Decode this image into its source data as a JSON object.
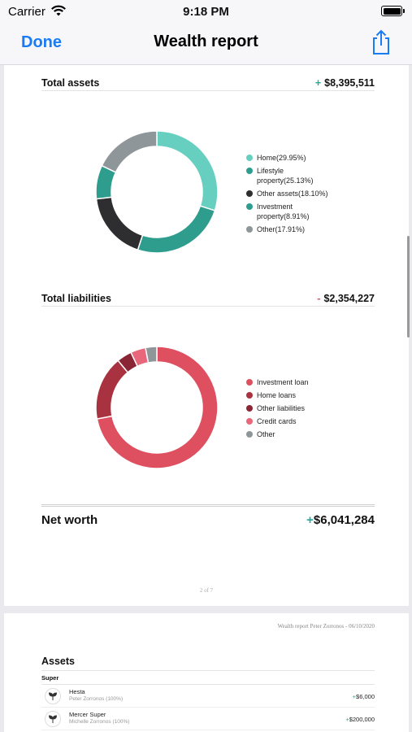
{
  "status_bar": {
    "carrier": "Carrier",
    "time": "9:18 PM"
  },
  "nav": {
    "done_label": "Done",
    "title": "Wealth report",
    "share_icon": "share-icon"
  },
  "colors": {
    "accent": "#1a7cf5",
    "positive": "#2ba79a",
    "negative": "#e14f5f"
  },
  "page1": {
    "total_assets": {
      "label": "Total assets",
      "sign": "+",
      "value": "$8,395,511"
    },
    "total_liabilities": {
      "label": "Total liabilities",
      "sign": "-",
      "value": "$2,354,227"
    },
    "net_worth": {
      "label": "Net worth",
      "sign": "+",
      "value": "$6,041,284"
    },
    "page_number": "2 of 7"
  },
  "page2": {
    "header": "Wealth report Peter Zorronos - 06/10/2020",
    "assets_title": "Assets",
    "group_label": "Super",
    "rows": [
      {
        "name": "Hesta",
        "owner": "Peter Zorronos (100%)",
        "sign": "+",
        "amount": "$6,000"
      },
      {
        "name": "Mercer Super",
        "owner": "Michelle Zorronos (100%)",
        "sign": "+",
        "amount": "$200,000"
      }
    ]
  },
  "chart_data": [
    {
      "type": "pie",
      "title": "Total assets",
      "donut": true,
      "legend_position": "right",
      "categories": [
        "Home(29.95%)",
        "Lifestyle property(25.13%)",
        "Other assets(18.10%)",
        "Investment property(8.91%)",
        "Other(17.91%)"
      ],
      "values": [
        29.95,
        25.13,
        18.1,
        8.91,
        17.91
      ],
      "colors": [
        "#66cfc0",
        "#2e9d8e",
        "#2e2e30",
        "#2e9d8e",
        "#8f969a"
      ]
    },
    {
      "type": "pie",
      "title": "Total liabilities",
      "donut": true,
      "legend_position": "right",
      "categories": [
        "Investment loan",
        "Home loans",
        "Other liabilities",
        "Credit cards",
        "Other"
      ],
      "values": [
        72,
        17,
        4,
        4,
        3
      ],
      "colors": [
        "#de4f5f",
        "#a8323f",
        "#8a2535",
        "#e9677a",
        "#8f969a"
      ]
    }
  ]
}
